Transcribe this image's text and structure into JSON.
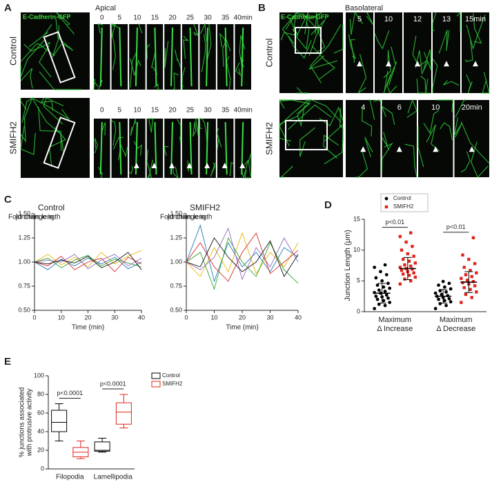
{
  "panel_a": {
    "label": "A",
    "stain": "E-Cadherin-GFP",
    "plane": "Apical",
    "rows": [
      {
        "condition": "Control",
        "times": [
          "0",
          "5",
          "10",
          "15",
          "20",
          "25",
          "30",
          "35",
          "40min"
        ]
      },
      {
        "condition": "SMIFH2",
        "times": [
          "0",
          "5",
          "10",
          "15",
          "20",
          "25",
          "30",
          "35",
          "40min"
        ]
      }
    ]
  },
  "panel_b": {
    "label": "B",
    "stain": "E-Cadherin-GFP",
    "plane": "Basolateral",
    "rows": [
      {
        "condition": "Control",
        "times": [
          "5",
          "10",
          "12",
          "13",
          "15min"
        ]
      },
      {
        "condition": "SMIFH2",
        "times": [
          "4",
          "6",
          "10",
          "20min"
        ]
      }
    ]
  },
  "chart_data": [
    {
      "type": "line",
      "panel_label": "C",
      "title": "Control",
      "xlabel": "Time (min)",
      "ylabel": [
        "Fold change in",
        "junction length"
      ],
      "x": [
        0,
        5,
        10,
        15,
        20,
        25,
        30,
        35,
        40
      ],
      "xlim": [
        0,
        40
      ],
      "xticks": [
        0,
        10,
        20,
        30,
        40
      ],
      "ylim": [
        0.5,
        1.5
      ],
      "yticks": [
        {
          "value": 0.5,
          "label": "0.50"
        },
        {
          "value": 0.75,
          "label": "0.75"
        },
        {
          "value": 1,
          "label": "1.00"
        },
        {
          "value": 1.25,
          "label": "1.25"
        },
        {
          "value": 1.5,
          "label": "1.50"
        }
      ],
      "series": [
        {
          "color": "#e6b800",
          "values": [
            1,
            1.08,
            0.97,
            1.05,
            0.95,
            1.1,
            0.98,
            1.06,
            1.12
          ]
        },
        {
          "color": "#1f77b4",
          "values": [
            1,
            0.92,
            1.03,
            0.96,
            1.04,
            0.98,
            1.05,
            0.93,
            1.0
          ]
        },
        {
          "color": "#2ca02c",
          "values": [
            1,
            1.04,
            0.94,
            1.02,
            1.07,
            0.96,
            1.03,
            0.99,
            0.95
          ]
        },
        {
          "color": "#d62728",
          "values": [
            1,
            0.96,
            1.06,
            0.92,
            1.0,
            1.04,
            0.9,
            1.05,
            0.98
          ]
        },
        {
          "color": "#9467bd",
          "values": [
            1,
            1.02,
            1.0,
            1.08,
            0.93,
            1.02,
            1.08,
            0.96,
            1.04
          ]
        },
        {
          "color": "#111111",
          "values": [
            1,
            0.98,
            1.02,
            0.99,
            1.06,
            0.94,
            1.0,
            1.1,
            0.92
          ]
        }
      ]
    },
    {
      "type": "line",
      "title": "SMIFH2",
      "xlabel": "Time (min)",
      "ylabel": [
        "Fold change in",
        "junction length"
      ],
      "x": [
        0,
        5,
        10,
        15,
        20,
        25,
        30,
        35,
        40
      ],
      "xlim": [
        0,
        40
      ],
      "xticks": [
        0,
        10,
        20,
        30,
        40
      ],
      "ylim": [
        0.5,
        1.5
      ],
      "yticks": [
        {
          "value": 0.5,
          "label": "0.50"
        },
        {
          "value": 0.75,
          "label": "0.75"
        },
        {
          "value": 1,
          "label": "1.00"
        },
        {
          "value": 1.25,
          "label": "1.25"
        },
        {
          "value": 1.5,
          "label": "1.50"
        }
      ],
      "series": [
        {
          "color": "#1f77b4",
          "values": [
            1,
            1.38,
            0.8,
            1.2,
            0.95,
            1.1,
            0.9,
            1.15,
            1.05
          ]
        },
        {
          "color": "#e6b800",
          "values": [
            1,
            0.85,
            1.15,
            0.9,
            1.3,
            0.88,
            1.1,
            0.95,
            1.2
          ]
        },
        {
          "color": "#2ca02c",
          "values": [
            1,
            1.1,
            0.72,
            1.25,
            1.0,
            0.85,
            1.2,
            0.92,
            0.78
          ]
        },
        {
          "color": "#9467bd",
          "values": [
            1,
            0.92,
            1.05,
            1.35,
            0.82,
            1.15,
            0.95,
            1.25,
            1.0
          ]
        },
        {
          "color": "#d62728",
          "values": [
            1,
            1.2,
            0.95,
            0.8,
            1.1,
            1.3,
            0.88,
            1.0,
            1.12
          ]
        },
        {
          "color": "#111111",
          "values": [
            1,
            0.95,
            1.25,
            1.05,
            0.9,
            1.0,
            1.22,
            0.85,
            1.08
          ]
        }
      ]
    },
    {
      "type": "dot",
      "panel_label": "D",
      "ylabel": "Junction Length (μm)",
      "categories": [
        [
          "Maximum",
          "Δ Increase"
        ],
        [
          "Maximum",
          "Δ Decrease"
        ]
      ],
      "ylim": [
        0,
        15
      ],
      "yticks": [
        0,
        5,
        10,
        15
      ],
      "annotations": [
        "p<0.01",
        "p<0.01"
      ],
      "series": [
        {
          "name": "Control",
          "color": "#000000",
          "means": [
            3,
            2.5
          ],
          "sd": [
            1.6,
            1.1
          ],
          "values": [
            [
              0.5,
              1,
              1.2,
              1.5,
              1.8,
              2,
              2.2,
              2.4,
              2.5,
              2.7,
              3,
              3.1,
              3.3,
              3.5,
              3.8,
              4,
              4.3,
              4.6,
              5,
              5.5,
              6,
              6.5,
              7.2,
              7.6
            ],
            [
              0.5,
              1,
              1.3,
              1.6,
              1.8,
              2,
              2.1,
              2.3,
              2.5,
              2.6,
              2.8,
              3,
              3.2,
              3.4,
              3.7,
              4,
              4.3,
              4.6,
              4.9
            ]
          ]
        },
        {
          "name": "SMIFH2",
          "color": "#e0241b",
          "means": [
            7,
            4.8
          ],
          "sd": [
            1.8,
            1.7
          ],
          "values": [
            [
              4.5,
              5,
              5.3,
              5.6,
              5.9,
              6.1,
              6.3,
              6.5,
              6.7,
              6.9,
              7,
              7.2,
              7.4,
              7.6,
              7.9,
              8.2,
              8.5,
              9,
              9.4,
              10,
              10.6,
              11.3,
              12.2,
              12.8
            ],
            [
              1.5,
              2.3,
              2.8,
              3.2,
              3.6,
              3.9,
              4.2,
              4.5,
              4.7,
              4.9,
              5.1,
              5.4,
              5.7,
              6,
              6.3,
              6.7,
              7.2,
              7.8,
              8.5,
              9.2,
              12
            ]
          ]
        }
      ]
    },
    {
      "type": "box",
      "panel_label": "E",
      "ylabel": [
        "% junctions associated",
        "with protrusive activity"
      ],
      "categories": [
        "Filopodia",
        "Lamellipodia"
      ],
      "ylim": [
        0,
        100
      ],
      "yticks": [
        0,
        20,
        40,
        60,
        80,
        100
      ],
      "annotations": [
        "p<0.0001",
        "p<0.0001"
      ],
      "series": [
        {
          "name": "Control",
          "color": "#000000",
          "values": [
            {
              "min": 30,
              "q1": 40,
              "median": 50,
              "q3": 63,
              "max": 70
            },
            {
              "min": 18,
              "q1": 19,
              "median": 20,
              "q3": 29,
              "max": 33
            }
          ]
        },
        {
          "name": "SMIFH2",
          "color": "#e0241b",
          "values": [
            {
              "min": 11,
              "q1": 13,
              "median": 18,
              "q3": 23,
              "max": 30
            },
            {
              "min": 44,
              "q1": 48,
              "median": 61,
              "q3": 71,
              "max": 80
            }
          ]
        }
      ]
    }
  ]
}
